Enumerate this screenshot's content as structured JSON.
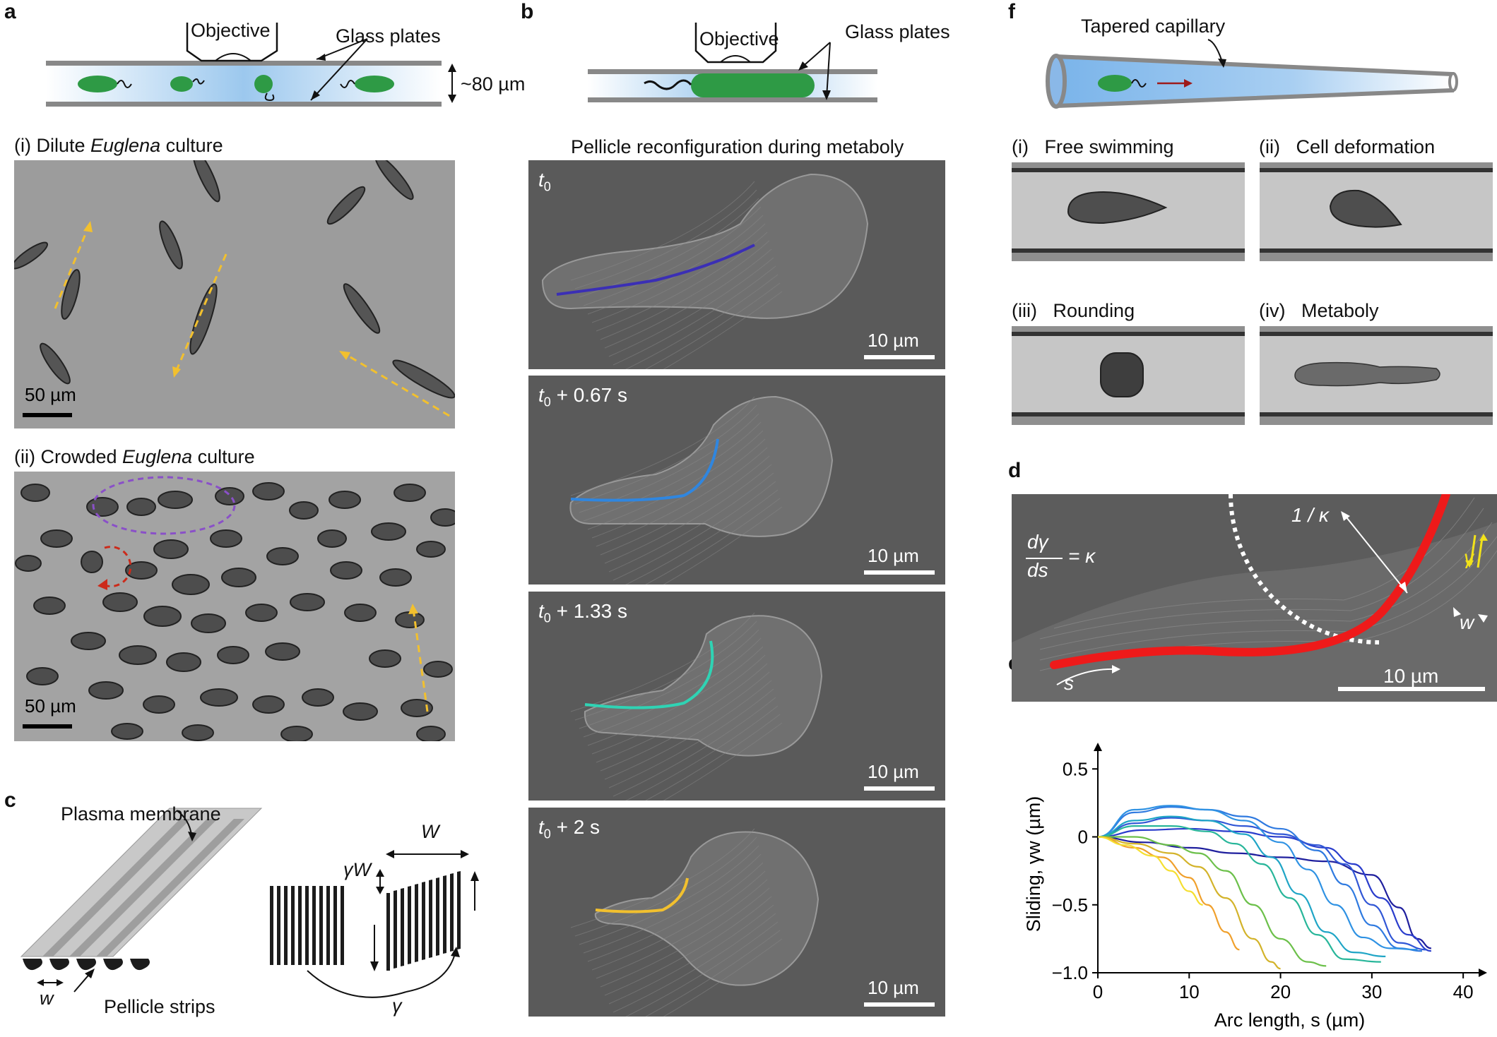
{
  "panel_labels": {
    "a": "a",
    "b": "b",
    "c": "c",
    "d": "d",
    "e": "e",
    "f": "f"
  },
  "panel_a": {
    "objective": "Objective",
    "glass_plates": "Glass plates",
    "gap": "~80 µm",
    "sub_i_prefix": "(i)   Dilute ",
    "sub_i_italic": "Euglena",
    "sub_i_suffix": " culture",
    "sub_ii_prefix": "(ii)   Crowded ",
    "sub_ii_italic": "Euglena",
    "sub_ii_suffix": " culture",
    "scale_i": "50 µm",
    "scale_ii": "50 µm"
  },
  "panel_b": {
    "objective": "Objective",
    "glass_plates": "Glass plates",
    "title": "Pellicle reconfiguration during metaboly",
    "frames": [
      {
        "t_sym": "t",
        "t_sub": "0",
        "t_rest": "",
        "scale": "10 µm",
        "color": "#3b2fb5"
      },
      {
        "t_sym": "t",
        "t_sub": "0",
        "t_rest": " + 0.67 s",
        "scale": "10 µm",
        "color": "#2f86e0"
      },
      {
        "t_sym": "t",
        "t_sub": "0",
        "t_rest": " + 1.33 s",
        "scale": "10 µm",
        "color": "#2fd3b4"
      },
      {
        "t_sym": "t",
        "t_sub": "0",
        "t_rest": " + 2 s",
        "scale": "10 µm",
        "color": "#f2c02e"
      }
    ]
  },
  "panel_c": {
    "plasma_membrane": "Plasma membrane",
    "pellicle_strips": "Pellicle strips",
    "w": "w",
    "W": "W",
    "gammaW": "γW",
    "gamma": "γ"
  },
  "panel_d": {
    "eq_num": "dγ",
    "eq_den": "ds",
    "eq_rhs": "= κ",
    "radius": "1 / κ",
    "gamma": "γ",
    "w": "w",
    "s": "s",
    "scale": "10 µm"
  },
  "panel_f": {
    "capillary": "Tapered capillary",
    "sub": [
      {
        "num": "(i)",
        "label": "Free swimming"
      },
      {
        "num": "(ii)",
        "label": "Cell deformation"
      },
      {
        "num": "(iii)",
        "label": "Rounding"
      },
      {
        "num": "(iv)",
        "label": "Metaboly"
      }
    ]
  },
  "chart_data": {
    "type": "line",
    "xlabel": "Arc length, s (µm)",
    "ylabel": "Sliding, γw (µm)",
    "xlim": [
      0,
      42
    ],
    "ylim": [
      -1.0,
      0.6
    ],
    "xticks": [
      0,
      10,
      20,
      30,
      40
    ],
    "yticks": [
      0.5,
      0,
      -0.5,
      -1.0
    ],
    "ytick_labels": [
      "0.5",
      "0",
      "−0.5",
      "−1.0"
    ],
    "series": [
      {
        "color": "#1f1f9e",
        "x": [
          0,
          5,
          10,
          15,
          20,
          25,
          30,
          33,
          35,
          36.5
        ],
        "y": [
          0,
          -0.04,
          -0.08,
          -0.12,
          -0.15,
          -0.18,
          -0.28,
          -0.52,
          -0.75,
          -0.82
        ]
      },
      {
        "color": "#2a3dcc",
        "x": [
          0,
          5,
          10,
          15,
          20,
          25,
          28,
          31,
          34,
          36.5
        ],
        "y": [
          0,
          0.05,
          0.06,
          0.04,
          0.0,
          -0.08,
          -0.2,
          -0.45,
          -0.72,
          -0.84
        ]
      },
      {
        "color": "#3157d6",
        "x": [
          0,
          4,
          8,
          12,
          16,
          20,
          24,
          27,
          30,
          33,
          36
        ],
        "y": [
          0,
          0.1,
          0.14,
          0.12,
          0.08,
          0.02,
          -0.06,
          -0.2,
          -0.5,
          -0.78,
          -0.83
        ]
      },
      {
        "color": "#2f7ae0",
        "x": [
          0,
          4,
          8,
          12,
          16,
          20,
          24,
          27,
          30,
          33,
          35.5
        ],
        "y": [
          0,
          0.18,
          0.22,
          0.2,
          0.15,
          0.06,
          -0.1,
          -0.35,
          -0.65,
          -0.82,
          -0.84
        ]
      },
      {
        "color": "#2f92e3",
        "x": [
          0,
          4,
          8,
          12,
          16,
          20,
          23,
          26,
          29,
          32,
          35
        ],
        "y": [
          0,
          0.2,
          0.23,
          0.2,
          0.12,
          -0.04,
          -0.24,
          -0.5,
          -0.74,
          -0.82,
          -0.83
        ]
      },
      {
        "color": "#1fa5c6",
        "x": [
          0,
          4,
          8,
          12,
          16,
          19,
          22,
          25,
          28,
          31.5
        ],
        "y": [
          0,
          0.12,
          0.15,
          0.12,
          0.02,
          -0.15,
          -0.42,
          -0.7,
          -0.85,
          -0.88
        ]
      },
      {
        "color": "#28b69a",
        "x": [
          0,
          4,
          8,
          12,
          15,
          18,
          21,
          24,
          27,
          31
        ],
        "y": [
          0,
          0.08,
          0.08,
          0.04,
          -0.05,
          -0.2,
          -0.45,
          -0.72,
          -0.9,
          -0.92
        ]
      },
      {
        "color": "#6cc04a",
        "x": [
          0,
          4,
          8,
          11,
          14,
          17,
          20,
          23,
          25
        ],
        "y": [
          0,
          0.0,
          -0.06,
          -0.12,
          -0.25,
          -0.5,
          -0.75,
          -0.92,
          -0.95
        ]
      },
      {
        "color": "#d3b32a",
        "x": [
          0,
          4,
          8,
          11,
          14,
          17,
          19,
          20
        ],
        "y": [
          0,
          -0.05,
          -0.12,
          -0.22,
          -0.45,
          -0.75,
          -0.92,
          -0.97
        ]
      },
      {
        "color": "#f0a02c",
        "x": [
          0,
          4,
          7,
          10,
          12,
          14,
          15.5
        ],
        "y": [
          0,
          -0.08,
          -0.15,
          -0.3,
          -0.5,
          -0.7,
          -0.83
        ]
      },
      {
        "color": "#f5df30",
        "x": [
          0,
          3,
          6,
          8,
          10,
          11.5
        ],
        "y": [
          0,
          -0.06,
          -0.14,
          -0.25,
          -0.4,
          -0.5
        ]
      }
    ]
  }
}
